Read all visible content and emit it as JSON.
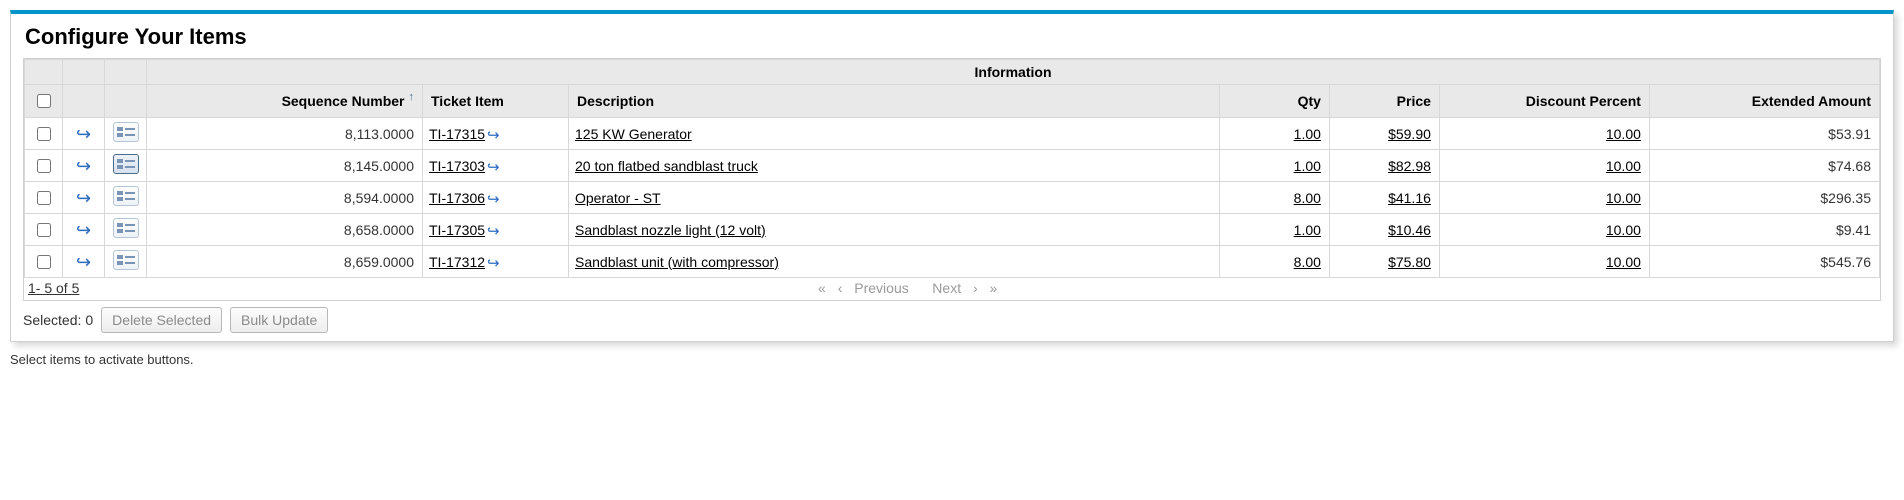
{
  "panel": {
    "title": "Configure Your Items"
  },
  "table": {
    "info_header": "Information",
    "columns": {
      "sequence": "Sequence Number",
      "ticket_item": "Ticket Item",
      "description": "Description",
      "qty": "Qty",
      "price": "Price",
      "discount": "Discount Percent",
      "extended": "Extended Amount"
    },
    "sort_arrow": "↑",
    "rows": [
      {
        "seq": "8,113.0000",
        "ticket": "TI-17315",
        "desc": "125 KW Generator",
        "qty": "1.00",
        "price": "$59.90",
        "disc": "10.00",
        "ext": "$53.91",
        "details_active": false
      },
      {
        "seq": "8,145.0000",
        "ticket": "TI-17303",
        "desc": "20 ton flatbed sandblast truck",
        "qty": "1.00",
        "price": "$82.98",
        "disc": "10.00",
        "ext": "$74.68",
        "details_active": true
      },
      {
        "seq": "8,594.0000",
        "ticket": "TI-17306",
        "desc": "Operator - ST",
        "qty": "8.00",
        "price": "$41.16",
        "disc": "10.00",
        "ext": "$296.35",
        "details_active": false
      },
      {
        "seq": "8,658.0000",
        "ticket": "TI-17305",
        "desc": "Sandblast nozzle light (12 volt)",
        "qty": "1.00",
        "price": "$10.46",
        "disc": "10.00",
        "ext": "$9.41",
        "details_active": false
      },
      {
        "seq": "8,659.0000",
        "ticket": "TI-17312",
        "desc": "Sandblast unit (with compressor)",
        "qty": "8.00",
        "price": "$75.80",
        "disc": "10.00",
        "ext": "$545.76",
        "details_active": false
      }
    ]
  },
  "pager": {
    "range": "1- 5  of  5",
    "first": "«",
    "prev_arrow": "‹",
    "prev_label": "Previous",
    "next_label": "Next",
    "next_arrow": "›",
    "last": "»"
  },
  "footer": {
    "selected_label": "Selected:",
    "selected_count": "0",
    "delete_btn": "Delete Selected",
    "bulk_btn": "Bulk Update",
    "hint": "Select items to activate buttons."
  },
  "icons": {
    "action": "↪",
    "goto": "↪"
  },
  "style": {
    "accent_color": "#0095c8",
    "header_bg": "#e9e9e9",
    "border_color": "#d0d0d0",
    "link_icon_color": "#2a6bbf",
    "disabled_text": "#9a9a9a"
  }
}
